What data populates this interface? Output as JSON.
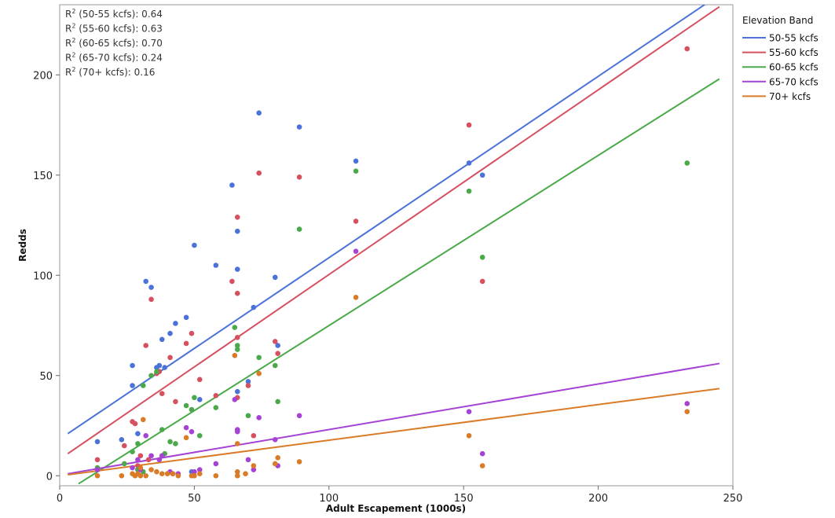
{
  "chart_data": {
    "type": "scatter",
    "title": "",
    "xlabel": "Adult Escapement (1000s)",
    "ylabel": "Redds",
    "xlim": [
      0,
      250
    ],
    "ylim": [
      -5,
      235
    ],
    "xticks": [
      0,
      50,
      100,
      150,
      200,
      250
    ],
    "yticks": [
      0,
      50,
      100,
      150,
      200
    ],
    "grid": false,
    "legend_title": "Elevation Band",
    "legend_position": "right",
    "r2_labels": [
      {
        "prefix": "R",
        "sup": "2",
        "text": " (50-55 kcfs): 0.64"
      },
      {
        "prefix": "R",
        "sup": "2",
        "text": " (55-60 kcfs): 0.63"
      },
      {
        "prefix": "R",
        "sup": "2",
        "text": " (60-65 kcfs): 0.70"
      },
      {
        "prefix": "R",
        "sup": "2",
        "text": " (65-70 kcfs): 0.24"
      },
      {
        "prefix": "R",
        "sup": "2",
        "text": " (70+ kcfs): 0.16"
      }
    ],
    "series": [
      {
        "name": "50-55 kcfs",
        "color": "#4a72d8",
        "fit": [
          [
            3,
            21
          ],
          [
            245,
            240
          ]
        ],
        "points": [
          [
            14,
            17
          ],
          [
            23,
            18
          ],
          [
            27,
            45
          ],
          [
            27,
            55
          ],
          [
            29,
            21
          ],
          [
            32,
            97
          ],
          [
            34,
            94
          ],
          [
            36,
            54
          ],
          [
            37,
            55
          ],
          [
            38,
            68
          ],
          [
            39,
            54
          ],
          [
            41,
            71
          ],
          [
            43,
            76
          ],
          [
            47,
            79
          ],
          [
            50,
            115
          ],
          [
            52,
            38
          ],
          [
            58,
            105
          ],
          [
            64,
            145
          ],
          [
            66,
            103
          ],
          [
            66,
            122
          ],
          [
            66,
            42
          ],
          [
            70,
            47
          ],
          [
            72,
            84
          ],
          [
            74,
            181
          ],
          [
            80,
            99
          ],
          [
            81,
            65
          ],
          [
            89,
            174
          ],
          [
            110,
            157
          ],
          [
            152,
            156
          ],
          [
            157,
            150
          ],
          [
            29,
            3
          ],
          [
            49,
            2
          ]
        ]
      },
      {
        "name": "55-60 kcfs",
        "color": "#d6505f",
        "fit": [
          [
            3,
            11
          ],
          [
            245,
            234
          ]
        ],
        "points": [
          [
            14,
            8
          ],
          [
            24,
            15
          ],
          [
            27,
            27
          ],
          [
            28,
            26
          ],
          [
            30,
            10
          ],
          [
            32,
            65
          ],
          [
            34,
            88
          ],
          [
            36,
            51
          ],
          [
            37,
            52
          ],
          [
            38,
            41
          ],
          [
            41,
            59
          ],
          [
            43,
            37
          ],
          [
            47,
            66
          ],
          [
            49,
            71
          ],
          [
            52,
            48
          ],
          [
            58,
            40
          ],
          [
            64,
            97
          ],
          [
            66,
            129
          ],
          [
            66,
            91
          ],
          [
            66,
            69
          ],
          [
            66,
            39
          ],
          [
            70,
            45
          ],
          [
            72,
            20
          ],
          [
            74,
            151
          ],
          [
            80,
            67
          ],
          [
            81,
            61
          ],
          [
            89,
            149
          ],
          [
            110,
            127
          ],
          [
            152,
            175
          ],
          [
            157,
            97
          ],
          [
            233,
            213
          ],
          [
            29,
            5
          ],
          [
            33,
            8
          ]
        ]
      },
      {
        "name": "60-65 kcfs",
        "color": "#4aaa49",
        "fit": [
          [
            7,
            -4
          ],
          [
            245,
            198
          ]
        ],
        "points": [
          [
            14,
            4
          ],
          [
            24,
            6
          ],
          [
            27,
            12
          ],
          [
            29,
            16
          ],
          [
            31,
            45
          ],
          [
            34,
            50
          ],
          [
            36,
            52
          ],
          [
            38,
            23
          ],
          [
            39,
            11
          ],
          [
            41,
            17
          ],
          [
            43,
            16
          ],
          [
            47,
            35
          ],
          [
            49,
            33
          ],
          [
            50,
            39
          ],
          [
            52,
            20
          ],
          [
            58,
            34
          ],
          [
            65,
            74
          ],
          [
            66,
            65
          ],
          [
            66,
            63
          ],
          [
            70,
            30
          ],
          [
            74,
            59
          ],
          [
            80,
            55
          ],
          [
            81,
            37
          ],
          [
            89,
            123
          ],
          [
            110,
            152
          ],
          [
            152,
            142
          ],
          [
            157,
            109
          ],
          [
            233,
            156
          ],
          [
            29,
            3
          ],
          [
            31,
            2
          ]
        ]
      },
      {
        "name": "65-70 kcfs",
        "color": "#a642d4",
        "fit": [
          [
            3,
            1
          ],
          [
            245,
            56
          ]
        ],
        "points": [
          [
            14,
            3
          ],
          [
            27,
            4
          ],
          [
            29,
            8
          ],
          [
            32,
            20
          ],
          [
            34,
            10
          ],
          [
            37,
            8
          ],
          [
            38,
            10
          ],
          [
            41,
            2
          ],
          [
            44,
            1
          ],
          [
            47,
            24
          ],
          [
            49,
            22
          ],
          [
            50,
            2
          ],
          [
            52,
            3
          ],
          [
            58,
            6
          ],
          [
            65,
            38
          ],
          [
            66,
            23
          ],
          [
            66,
            22
          ],
          [
            70,
            8
          ],
          [
            72,
            3
          ],
          [
            74,
            29
          ],
          [
            80,
            18
          ],
          [
            81,
            5
          ],
          [
            89,
            30
          ],
          [
            110,
            112
          ],
          [
            152,
            32
          ],
          [
            157,
            11
          ],
          [
            233,
            36
          ],
          [
            30,
            3
          ],
          [
            42,
            1
          ]
        ]
      },
      {
        "name": "70+ kcfs",
        "color": "#d97b27",
        "fit": [
          [
            3,
            0.5
          ],
          [
            245,
            43.5
          ]
        ],
        "points": [
          [
            14,
            0
          ],
          [
            23,
            0
          ],
          [
            27,
            1
          ],
          [
            28,
            0
          ],
          [
            29,
            1
          ],
          [
            30,
            0
          ],
          [
            31,
            28
          ],
          [
            32,
            0
          ],
          [
            34,
            3
          ],
          [
            36,
            2
          ],
          [
            38,
            1
          ],
          [
            40,
            1
          ],
          [
            42,
            1
          ],
          [
            44,
            0
          ],
          [
            47,
            19
          ],
          [
            49,
            0
          ],
          [
            50,
            0
          ],
          [
            52,
            1
          ],
          [
            58,
            0
          ],
          [
            65,
            60
          ],
          [
            66,
            16
          ],
          [
            66,
            2
          ],
          [
            69,
            1
          ],
          [
            72,
            5
          ],
          [
            74,
            51
          ],
          [
            80,
            6
          ],
          [
            81,
            9
          ],
          [
            89,
            7
          ],
          [
            110,
            89
          ],
          [
            152,
            20
          ],
          [
            157,
            5
          ],
          [
            233,
            32
          ],
          [
            30,
            4
          ],
          [
            66,
            0
          ]
        ]
      }
    ]
  }
}
